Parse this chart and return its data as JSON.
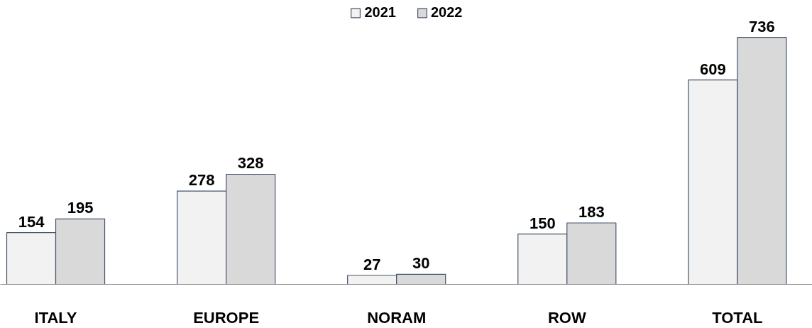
{
  "chart_data": {
    "type": "bar",
    "categories": [
      "ITALY",
      "EUROPE",
      "NORAM",
      "ROW",
      "TOTAL"
    ],
    "series": [
      {
        "name": "2021",
        "color": "#f2f2f2",
        "values": [
          154,
          278,
          27,
          150,
          609
        ]
      },
      {
        "name": "2022",
        "color": "#d9d9d9",
        "values": [
          195,
          328,
          30,
          183,
          736
        ]
      }
    ],
    "data_labels": true,
    "legend": "top",
    "grid": false
  }
}
